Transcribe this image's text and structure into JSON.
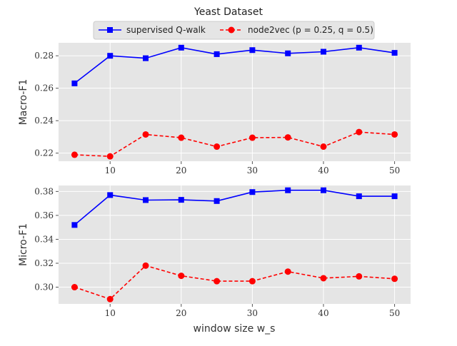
{
  "chart_data": {
    "type": "line",
    "title": "Yeast Dataset",
    "xlabel": "window size w_s",
    "x": [
      5,
      10,
      15,
      20,
      25,
      30,
      35,
      40,
      45,
      50
    ],
    "xticks": [
      10,
      20,
      30,
      40,
      50
    ],
    "legend": {
      "placement": "top-center",
      "entries": [
        {
          "label": "supervised Q-walk",
          "color": "#0000ff",
          "marker": "square",
          "style": "solid"
        },
        {
          "label": "node2vec (p = 0.25, q = 0.5)",
          "color": "#ff0000",
          "marker": "circle",
          "style": "dashed"
        }
      ]
    },
    "grid": true,
    "subplots": [
      {
        "ylabel": "Macro-F1",
        "ylim": [
          0.215,
          0.288
        ],
        "yticks": [
          "0.22",
          "0.24",
          "0.26",
          "0.28"
        ],
        "series": [
          {
            "name": "supervised Q-walk",
            "color": "#0000ff",
            "marker": "square",
            "style": "solid",
            "values": [
              0.263,
              0.28,
              0.2785,
              0.285,
              0.281,
              0.2835,
              0.2815,
              0.2825,
              0.285,
              0.2818
            ]
          },
          {
            "name": "node2vec (p = 0.25, q = 0.5)",
            "color": "#ff0000",
            "marker": "circle",
            "style": "dashed",
            "values": [
              0.219,
              0.218,
              0.2315,
              0.2295,
              0.224,
              0.2295,
              0.2297,
              0.224,
              0.233,
              0.2315
            ]
          }
        ]
      },
      {
        "ylabel": "Micro-F1",
        "ylim": [
          0.286,
          0.385
        ],
        "yticks": [
          "0.30",
          "0.32",
          "0.34",
          "0.36",
          "0.38"
        ],
        "series": [
          {
            "name": "supervised Q-walk",
            "color": "#0000ff",
            "marker": "square",
            "style": "solid",
            "values": [
              0.352,
              0.377,
              0.3728,
              0.373,
              0.372,
              0.3795,
              0.381,
              0.381,
              0.376,
              0.376
            ]
          },
          {
            "name": "node2vec (p = 0.25, q = 0.5)",
            "color": "#ff0000",
            "marker": "circle",
            "style": "dashed",
            "values": [
              0.3,
              0.29,
              0.318,
              0.3095,
              0.305,
              0.305,
              0.313,
              0.3075,
              0.309,
              0.307
            ]
          }
        ]
      }
    ]
  }
}
